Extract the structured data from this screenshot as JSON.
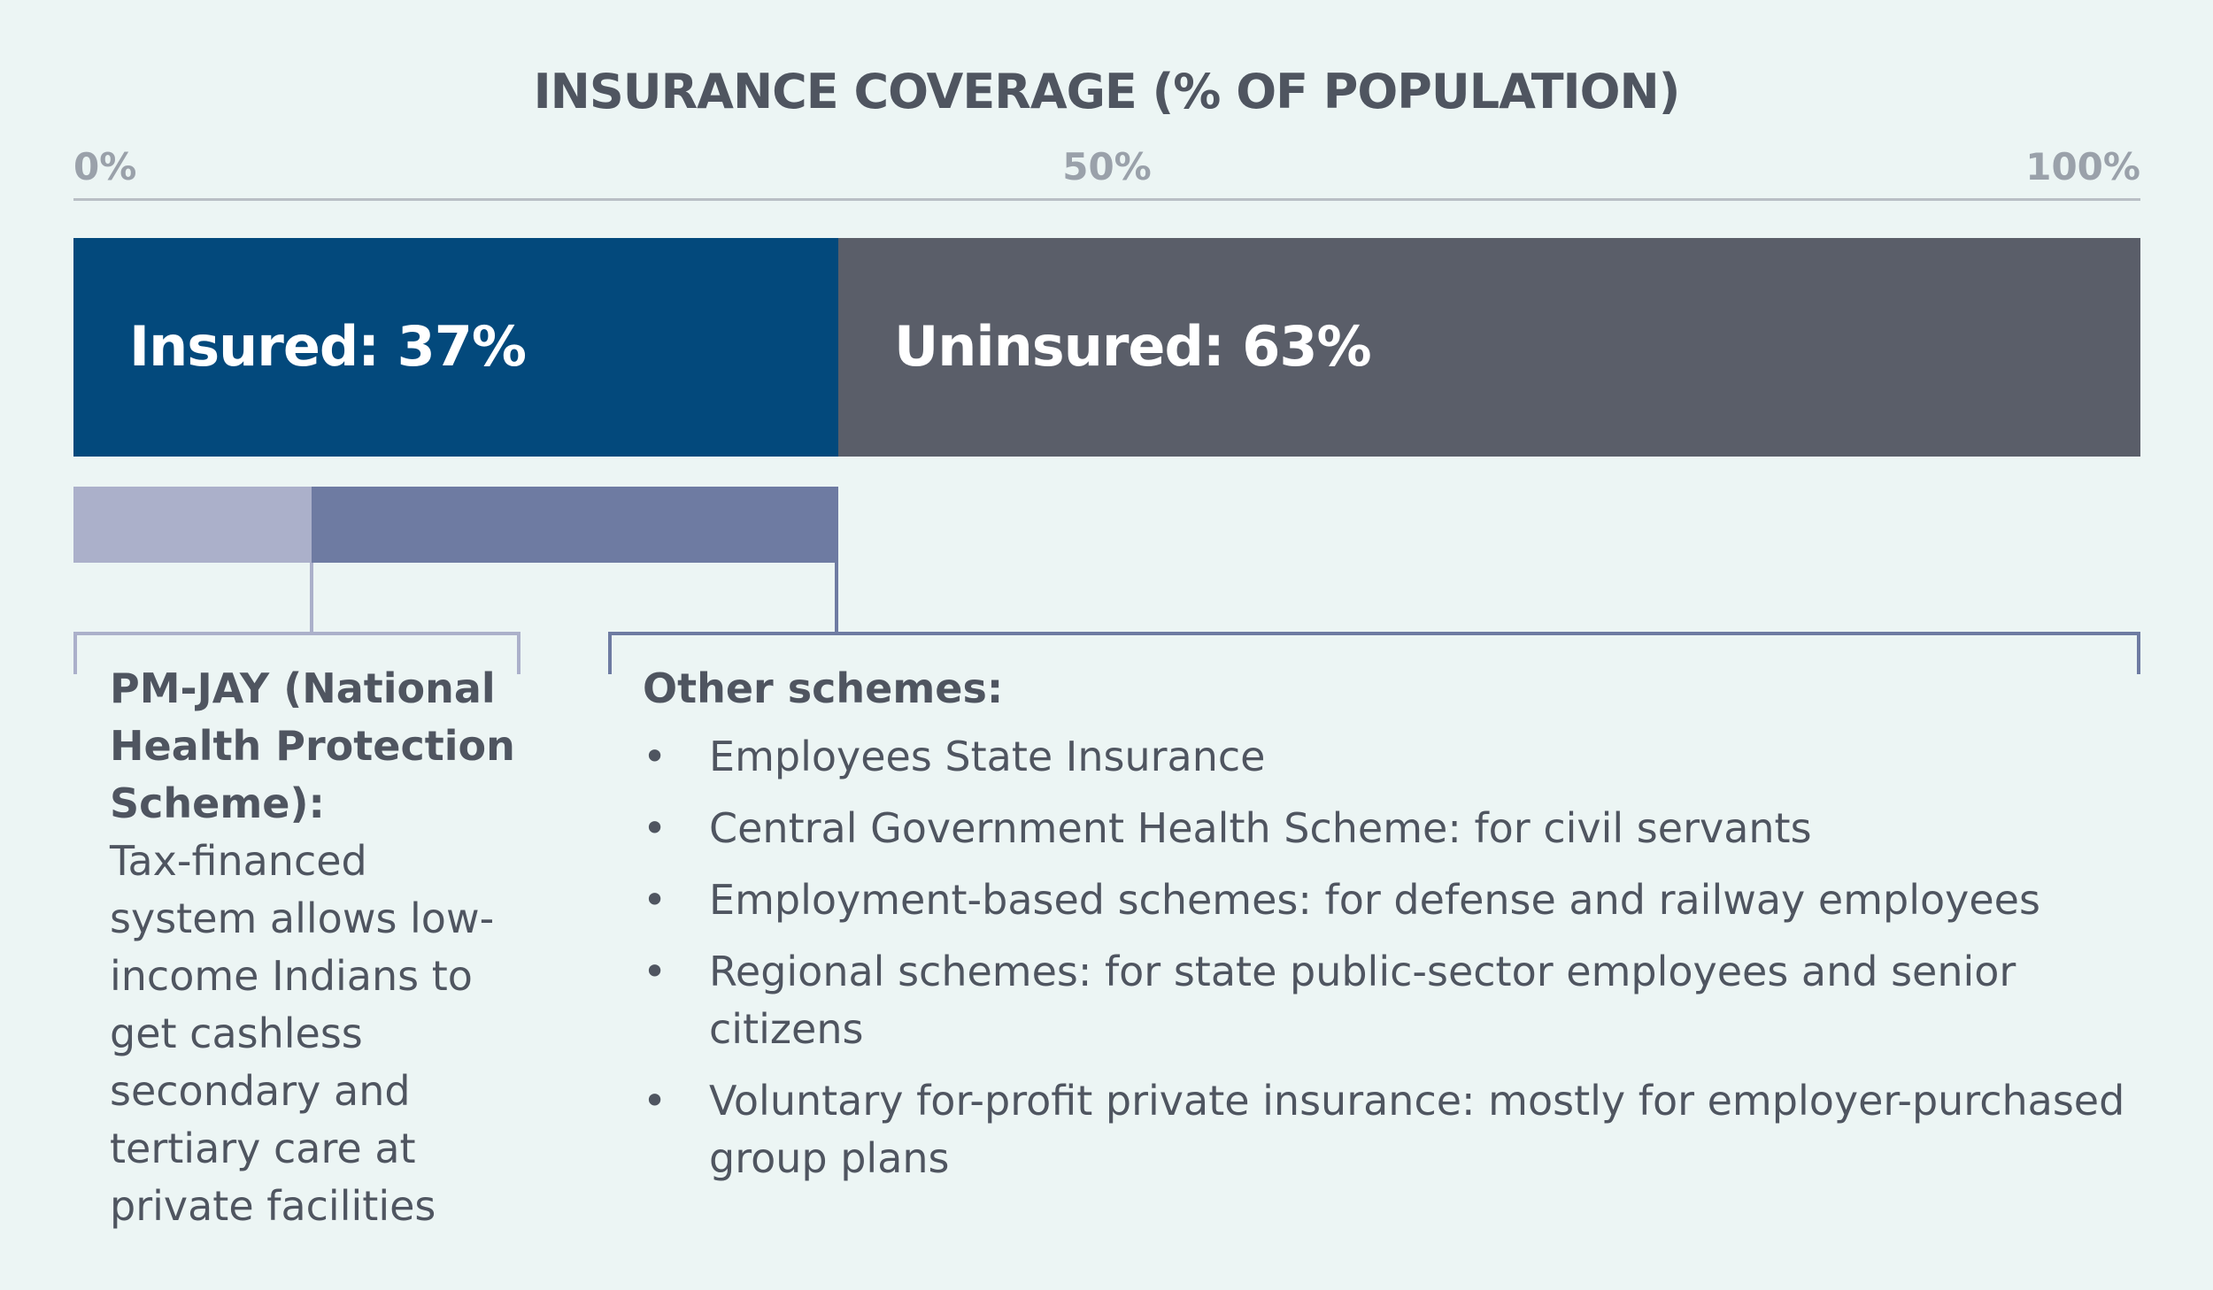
{
  "chart_data": {
    "type": "bar",
    "orientation": "horizontal",
    "stacked": true,
    "title": "INSURANCE COVERAGE (% OF POPULATION)",
    "xlim": [
      0,
      100
    ],
    "x_ticks": [
      "0%",
      "50%",
      "100%"
    ],
    "series": [
      {
        "label": "Insured: 37%",
        "value": 37,
        "color": "#03497c"
      },
      {
        "label": "Uninsured: 63%",
        "value": 63,
        "color": "#5a5e69"
      }
    ],
    "breakdown": {
      "of": "Insured",
      "parts": [
        {
          "value": 11.5,
          "color": "#abb0ca"
        },
        {
          "value": 25.5,
          "color": "#6e7ba2"
        }
      ]
    }
  },
  "pmjay": {
    "heading": "PM-JAY (National Health Protection Scheme):",
    "description": "Tax-financed system allows low-income Indians to get cashless secondary and tertiary care at private facilities"
  },
  "other_schemes": {
    "heading": "Other schemes:",
    "bullet": "•",
    "items": [
      "Employees State Insurance",
      "Central Government Health Scheme: for civil servants",
      "Employment-based schemes: for defense and railway employees",
      "Regional schemes: for state public-sector employees and senior citizens",
      "Voluntary for-profit private insurance: mostly for employer-purchased group plans"
    ]
  },
  "colors": {
    "background": "#ecf5f4",
    "axis": "#b9bfc5",
    "tick_text": "#9aa1aa",
    "text": "#4f5560",
    "bracket_pmjay": "#abb0ca",
    "bracket_other": "#6e7ba2"
  }
}
